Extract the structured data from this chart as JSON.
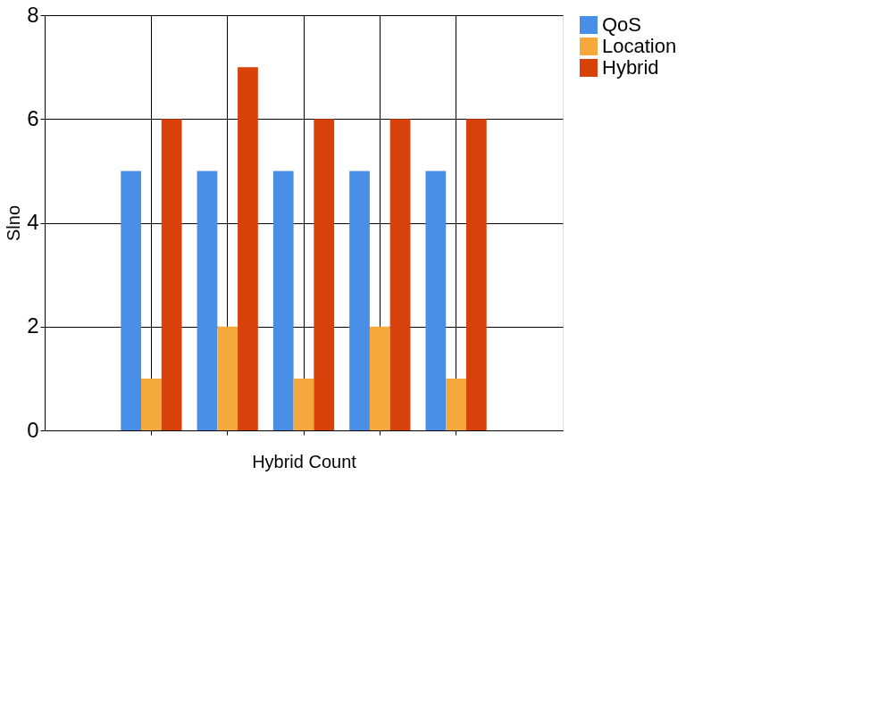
{
  "chart_data": {
    "type": "bar",
    "xlabel": "Hybrid Count",
    "ylabel": "Slno",
    "categories": [
      null,
      null,
      null,
      null,
      null
    ],
    "series": [
      {
        "name": "QoS",
        "color": "#4a8fe7",
        "values": [
          5,
          5,
          5,
          5,
          5
        ]
      },
      {
        "name": "Location",
        "color": "#f5a83c",
        "values": [
          1,
          2,
          1,
          2,
          1
        ]
      },
      {
        "name": "Hybrid",
        "color": "#d9410b",
        "values": [
          6,
          7,
          6,
          6,
          6
        ]
      }
    ],
    "ylim": [
      0,
      8
    ],
    "yticks": [
      0,
      2,
      4,
      6,
      8
    ],
    "grid": true,
    "legend": "top right",
    "tick_labels": "y"
  }
}
